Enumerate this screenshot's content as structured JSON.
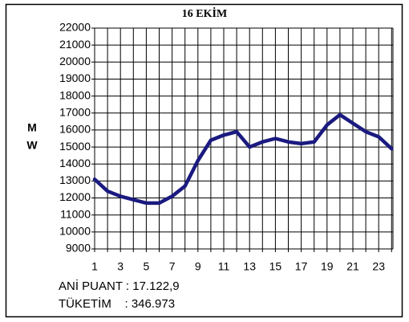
{
  "chart_data": {
    "type": "line",
    "title": "16 EKİM",
    "ylabel": [
      "M",
      "W"
    ],
    "categories": [
      1,
      null,
      3,
      null,
      5,
      null,
      7,
      null,
      9,
      null,
      11,
      null,
      13,
      null,
      15,
      null,
      17,
      null,
      19,
      null,
      21,
      null,
      23,
      null
    ],
    "series": [
      {
        "name": "MW",
        "color": "#1a1a80",
        "values": [
          13100,
          12400,
          12100,
          11900,
          11700,
          11700,
          12100,
          12700,
          14200,
          15400,
          15700,
          15900,
          15000,
          15300,
          15500,
          15300,
          15200,
          15300,
          16300,
          16900,
          16400,
          15900,
          15600,
          14900
        ]
      }
    ],
    "ylim": [
      9000,
      22000
    ],
    "yticks": [
      9000,
      10000,
      11000,
      12000,
      13000,
      14000,
      15000,
      16000,
      17000,
      18000,
      19000,
      20000,
      21000,
      22000
    ],
    "grid": true,
    "annotations": [
      "ANİ PUANT : 17.122,9",
      "TÜKETİM    : 346.973"
    ]
  }
}
